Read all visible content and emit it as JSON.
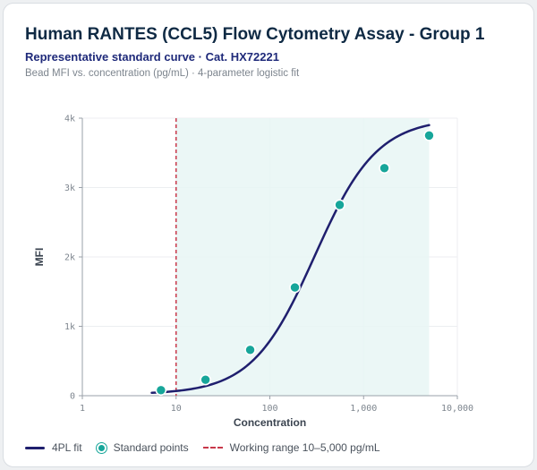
{
  "header": {
    "title": "Human RANTES (CCL5) Flow Cytometry Assay - Group 1",
    "subtitle": "Representative standard curve · Cat. HX72221",
    "caption": "Bead MFI vs. concentration (pg/mL) · 4-parameter logistic fit"
  },
  "legend": {
    "fit_label": "4PL fit",
    "points_label": "Standard points",
    "range_label": "Working range 10–5,000 pg/mL"
  },
  "colors": {
    "fit": "#1f1f6e",
    "points": "#17a69a",
    "range_line": "#c8384a",
    "range_fill": "#e8f6f5"
  },
  "chart_data": {
    "type": "scatter",
    "xlabel": "Concentration",
    "ylabel": "MFI",
    "x_scale": "log",
    "xlim": [
      1,
      10000
    ],
    "ylim": [
      0,
      4000
    ],
    "x_ticks": [
      1,
      10,
      100,
      1000,
      10000
    ],
    "x_tick_labels": [
      "1",
      "10",
      "100",
      "1,000",
      "10,000"
    ],
    "y_ticks": [
      0,
      1000,
      2000,
      3000,
      4000
    ],
    "y_tick_labels": [
      "0",
      "1k",
      "2k",
      "3k",
      "4k"
    ],
    "grid": true,
    "legend_position": "bottom",
    "working_range": [
      10,
      5000
    ],
    "series": [
      {
        "name": "Standard points",
        "x": [
          6.9,
          20.6,
          61.7,
          185,
          556,
          1667,
          5000
        ],
        "y": [
          80,
          230,
          660,
          1560,
          2750,
          3280,
          3750
        ]
      }
    ],
    "fit": {
      "name": "4PL fit",
      "model": "4PL",
      "x_range": [
        5.5,
        5000
      ],
      "params": {
        "a": 20,
        "d": 4000,
        "c": 300,
        "b": 1.3
      }
    }
  }
}
